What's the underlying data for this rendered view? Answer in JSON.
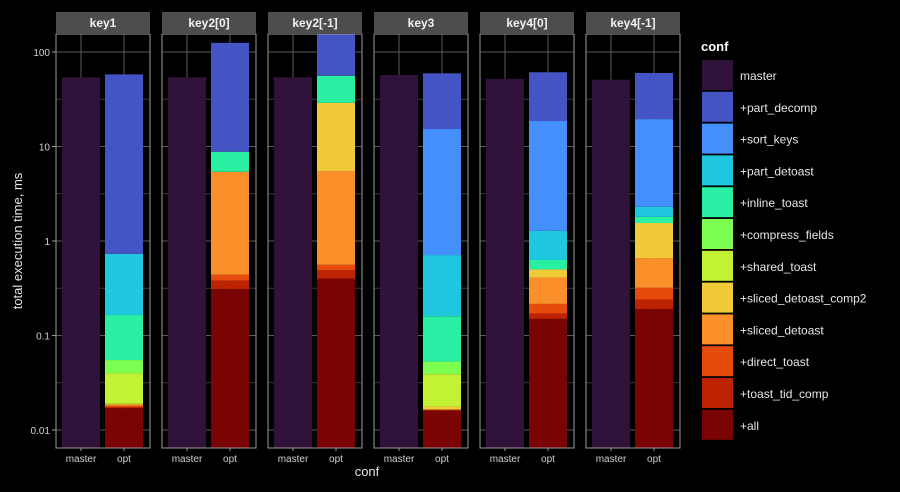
{
  "chart_data": {
    "type": "bar",
    "stacked": true,
    "y_scale": "log10",
    "ylabel": "total execution time, ms",
    "xlabel": "conf",
    "ylim": [
      0.0065,
      155
    ],
    "y_ticks": [
      {
        "value": 100,
        "label": "100"
      },
      {
        "value": 10,
        "label": "10"
      },
      {
        "value": 1,
        "label": "1"
      },
      {
        "value": 0.1,
        "label": "0.1"
      },
      {
        "value": 0.01,
        "label": "0.01"
      }
    ],
    "categories": [
      "master",
      "opt"
    ],
    "legend": {
      "title": "conf",
      "placement": "right",
      "items": [
        {
          "name": "master",
          "color": "#30123b"
        },
        {
          "name": "+part_decomp",
          "color": "#4454c4"
        },
        {
          "name": "+sort_keys",
          "color": "#4490fe"
        },
        {
          "name": "+part_detoast",
          "color": "#1fc8de"
        },
        {
          "name": "+inline_toast",
          "color": "#29efa2"
        },
        {
          "name": "+compress_fields",
          "color": "#7cff50"
        },
        {
          "name": "+shared_toast",
          "color": "#c3f134"
        },
        {
          "name": "+sliced_detoast_comp2",
          "color": "#f1ca3a"
        },
        {
          "name": "+sliced_detoast",
          "color": "#fb8f29"
        },
        {
          "name": "+direct_toast",
          "color": "#e64b0b"
        },
        {
          "name": "+toast_tid_comp",
          "color": "#bd2202"
        },
        {
          "name": "+all",
          "color": "#7a0403"
        }
      ]
    },
    "stack_order_bottom_up": [
      "+all",
      "+toast_tid_comp",
      "+direct_toast",
      "+sliced_detoast",
      "+sliced_detoast_comp2",
      "+shared_toast",
      "+compress_fields",
      "+inline_toast",
      "+part_detoast",
      "+sort_keys",
      "+part_decomp"
    ],
    "panels": [
      {
        "title": "key1",
        "master": 54,
        "opt_cumulative_top": {
          "+all": 0.017,
          "+toast_tid_comp": 0.0175,
          "+direct_toast": 0.018,
          "+sliced_detoast": 0.0185,
          "+sliced_detoast_comp2": 0.019,
          "+shared_toast": 0.04,
          "+compress_fields": 0.055,
          "+inline_toast": 0.165,
          "+part_detoast": 0.73,
          "+sort_keys": 0.73,
          "+part_decomp": 58
        }
      },
      {
        "title": "key2[0]",
        "master": 54,
        "opt_cumulative_top": {
          "+all": 0.31,
          "+toast_tid_comp": 0.38,
          "+direct_toast": 0.44,
          "+sliced_detoast": 5.4,
          "+sliced_detoast_comp2": 5.4,
          "+shared_toast": 5.4,
          "+compress_fields": 5.4,
          "+inline_toast": 8.8,
          "+part_detoast": 8.8,
          "+sort_keys": 8.8,
          "+part_decomp": 125
        }
      },
      {
        "title": "key2[-1]",
        "master": 54,
        "opt_cumulative_top": {
          "+all": 0.4,
          "+toast_tid_comp": 0.49,
          "+direct_toast": 0.56,
          "+sliced_detoast": 5.5,
          "+sliced_detoast_comp2": 29,
          "+shared_toast": 29,
          "+compress_fields": 29,
          "+inline_toast": 56,
          "+part_detoast": 56,
          "+sort_keys": 56,
          "+part_decomp": 160
        }
      },
      {
        "title": "key3",
        "master": 57,
        "opt_cumulative_top": {
          "+all": 0.016,
          "+toast_tid_comp": 0.0162,
          "+direct_toast": 0.0164,
          "+sliced_detoast": 0.0165,
          "+sliced_detoast_comp2": 0.0177,
          "+shared_toast": 0.039,
          "+compress_fields": 0.053,
          "+inline_toast": 0.16,
          "+part_detoast": 0.71,
          "+sort_keys": 15.3,
          "+part_decomp": 59.5
        }
      },
      {
        "title": "key4[0]",
        "master": 52,
        "opt_cumulative_top": {
          "+all": 0.15,
          "+toast_tid_comp": 0.17,
          "+direct_toast": 0.216,
          "+sliced_detoast": 0.41,
          "+sliced_detoast_comp2": 0.5,
          "+shared_toast": 0.5,
          "+compress_fields": 0.5,
          "+inline_toast": 0.63,
          "+part_detoast": 1.28,
          "+sort_keys": 18.6,
          "+part_decomp": 61
        }
      },
      {
        "title": "key4[-1]",
        "master": 51,
        "opt_cumulative_top": {
          "+all": 0.19,
          "+toast_tid_comp": 0.24,
          "+direct_toast": 0.32,
          "+sliced_detoast": 0.66,
          "+sliced_detoast_comp2": 1.55,
          "+shared_toast": 1.55,
          "+compress_fields": 1.55,
          "+inline_toast": 1.8,
          "+part_detoast": 2.3,
          "+sort_keys": 19.5,
          "+part_decomp": 60
        }
      }
    ]
  }
}
